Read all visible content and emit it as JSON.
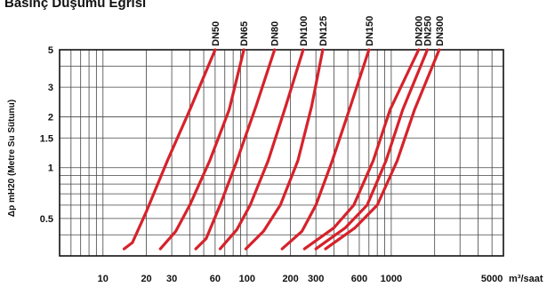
{
  "chart_data": {
    "type": "line",
    "title": "Basınç Düşümü Eğrisi",
    "ylabel": "Δp mH20 (Metre Su Sütunu)",
    "xlabel": "m³/saat",
    "x_scale": "log",
    "y_scale": "log",
    "xlim": [
      5,
      6000
    ],
    "ylim": [
      0.3,
      5
    ],
    "x_ticks": [
      10,
      20,
      30,
      60,
      100,
      200,
      300,
      600,
      1000,
      5000
    ],
    "x_tick_labels": [
      "10",
      "20",
      "30",
      "60",
      "100",
      "200",
      "300",
      "600",
      "1000",
      "5000"
    ],
    "y_ticks": [
      0.5,
      1,
      1.5,
      2,
      3,
      5
    ],
    "y_tick_labels": [
      "0.5",
      "1",
      "1.5",
      "2",
      "3",
      "5"
    ],
    "grid": true,
    "line_color": "#d6222b",
    "series": [
      {
        "name": "DN50",
        "x": [
          14,
          16,
          20,
          28,
          40,
          60
        ],
        "y": [
          0.33,
          0.36,
          0.55,
          1.1,
          2.2,
          5
        ]
      },
      {
        "name": "DN65",
        "x": [
          25,
          32,
          40,
          55,
          75,
          95
        ],
        "y": [
          0.33,
          0.42,
          0.6,
          1.1,
          2.2,
          5
        ]
      },
      {
        "name": "DN80",
        "x": [
          44,
          52,
          65,
          85,
          115,
          155
        ],
        "y": [
          0.33,
          0.38,
          0.6,
          1.1,
          2.3,
          5
        ]
      },
      {
        "name": "DN100",
        "x": [
          65,
          85,
          105,
          140,
          185,
          245
        ],
        "y": [
          0.33,
          0.43,
          0.6,
          1.1,
          2.3,
          5
        ]
      },
      {
        "name": "DN125",
        "x": [
          98,
          130,
          170,
          225,
          280,
          335
        ],
        "y": [
          0.33,
          0.42,
          0.6,
          1.1,
          2.3,
          5
        ]
      },
      {
        "name": "DN150",
        "x": [
          175,
          240,
          300,
          390,
          520,
          700
        ],
        "y": [
          0.33,
          0.42,
          0.6,
          1.1,
          2.3,
          5
        ]
      },
      {
        "name": "DN200",
        "x": [
          250,
          400,
          550,
          750,
          980,
          1550
        ],
        "y": [
          0.33,
          0.44,
          0.6,
          1.1,
          2.2,
          5
        ]
      },
      {
        "name": "DN250",
        "x": [
          300,
          480,
          680,
          920,
          1200,
          1780
        ],
        "y": [
          0.33,
          0.44,
          0.6,
          1.1,
          2.2,
          5
        ]
      },
      {
        "name": "DN300",
        "x": [
          350,
          560,
          800,
          1100,
          1450,
          2150
        ],
        "y": [
          0.33,
          0.44,
          0.6,
          1.1,
          2.2,
          5
        ]
      }
    ]
  }
}
